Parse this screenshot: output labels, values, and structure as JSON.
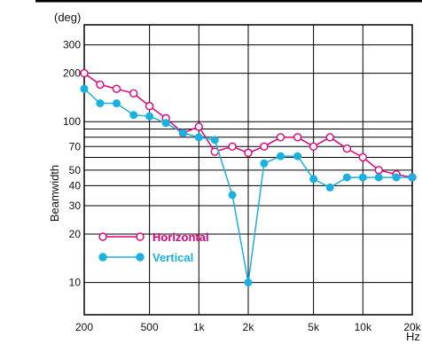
{
  "chart_data": {
    "type": "line",
    "ylabel": "Beamwidth",
    "yunit": "(deg)",
    "xunit": "Hz",
    "xscale": "log",
    "yscale": "log",
    "xlim": [
      200,
      20000
    ],
    "ylim": [
      6.3,
      400
    ],
    "grid": true,
    "legend_position": "lower-left",
    "x_ticks": [
      {
        "value": 200,
        "label": "200"
      },
      {
        "value": 500,
        "label": "500"
      },
      {
        "value": 1000,
        "label": "1k"
      },
      {
        "value": 2000,
        "label": "2k"
      },
      {
        "value": 5000,
        "label": "5k"
      },
      {
        "value": 10000,
        "label": "10k"
      },
      {
        "value": 20000,
        "label": "20k"
      }
    ],
    "x_grid": [
      200,
      500,
      1000,
      2000,
      5000,
      10000,
      20000
    ],
    "y_ticks": [
      {
        "value": 300,
        "label": "300"
      },
      {
        "value": 200,
        "label": "200"
      },
      {
        "value": 100,
        "label": "100"
      },
      {
        "value": 70,
        "label": "70"
      },
      {
        "value": 50,
        "label": "50"
      },
      {
        "value": 40,
        "label": "40"
      },
      {
        "value": 30,
        "label": "30"
      },
      {
        "value": 20,
        "label": "20"
      },
      {
        "value": 10,
        "label": "10"
      }
    ],
    "y_grid": [
      300,
      200,
      100,
      90,
      80,
      70,
      60,
      50,
      40,
      30,
      20,
      10
    ],
    "x": [
      200,
      250,
      315,
      400,
      500,
      630,
      800,
      1000,
      1250,
      1600,
      2000,
      2500,
      3150,
      4000,
      5000,
      6300,
      8000,
      10000,
      12500,
      16000,
      20000
    ],
    "series": [
      {
        "name": "Horizontal",
        "color": "#e0007a",
        "marker": "open-circle",
        "values": [
          200,
          170,
          160,
          150,
          125,
          105,
          85,
          93,
          65,
          70,
          64,
          70,
          80,
          80,
          70,
          80,
          68,
          60,
          50,
          47,
          45
        ]
      },
      {
        "name": "Vertical",
        "color": "#1ab0e0",
        "marker": "filled-circle",
        "values": [
          160,
          130,
          130,
          110,
          108,
          98,
          85,
          80,
          77,
          35,
          10,
          55,
          61,
          61,
          44,
          39,
          45,
          45,
          45,
          45,
          45
        ]
      }
    ]
  }
}
